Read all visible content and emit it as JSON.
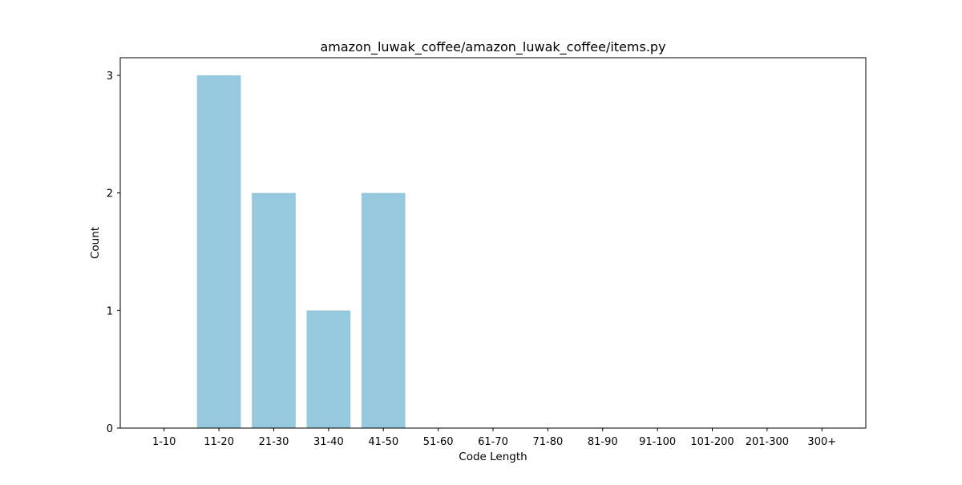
{
  "chart_data": {
    "type": "bar",
    "title": "amazon_luwak_coffee/amazon_luwak_coffee/items.py",
    "xlabel": "Code Length",
    "ylabel": "Count",
    "categories": [
      "1-10",
      "11-20",
      "21-30",
      "31-40",
      "41-50",
      "51-60",
      "61-70",
      "71-80",
      "81-90",
      "91-100",
      "101-200",
      "201-300",
      "300+"
    ],
    "values": [
      0,
      3,
      2,
      1,
      2,
      0,
      0,
      0,
      0,
      0,
      0,
      0,
      0
    ],
    "ylim": [
      0,
      3.15
    ],
    "yticks": [
      0,
      1,
      2,
      3
    ],
    "bar_color": "#96c9dd",
    "grid": false,
    "legend": "none"
  }
}
